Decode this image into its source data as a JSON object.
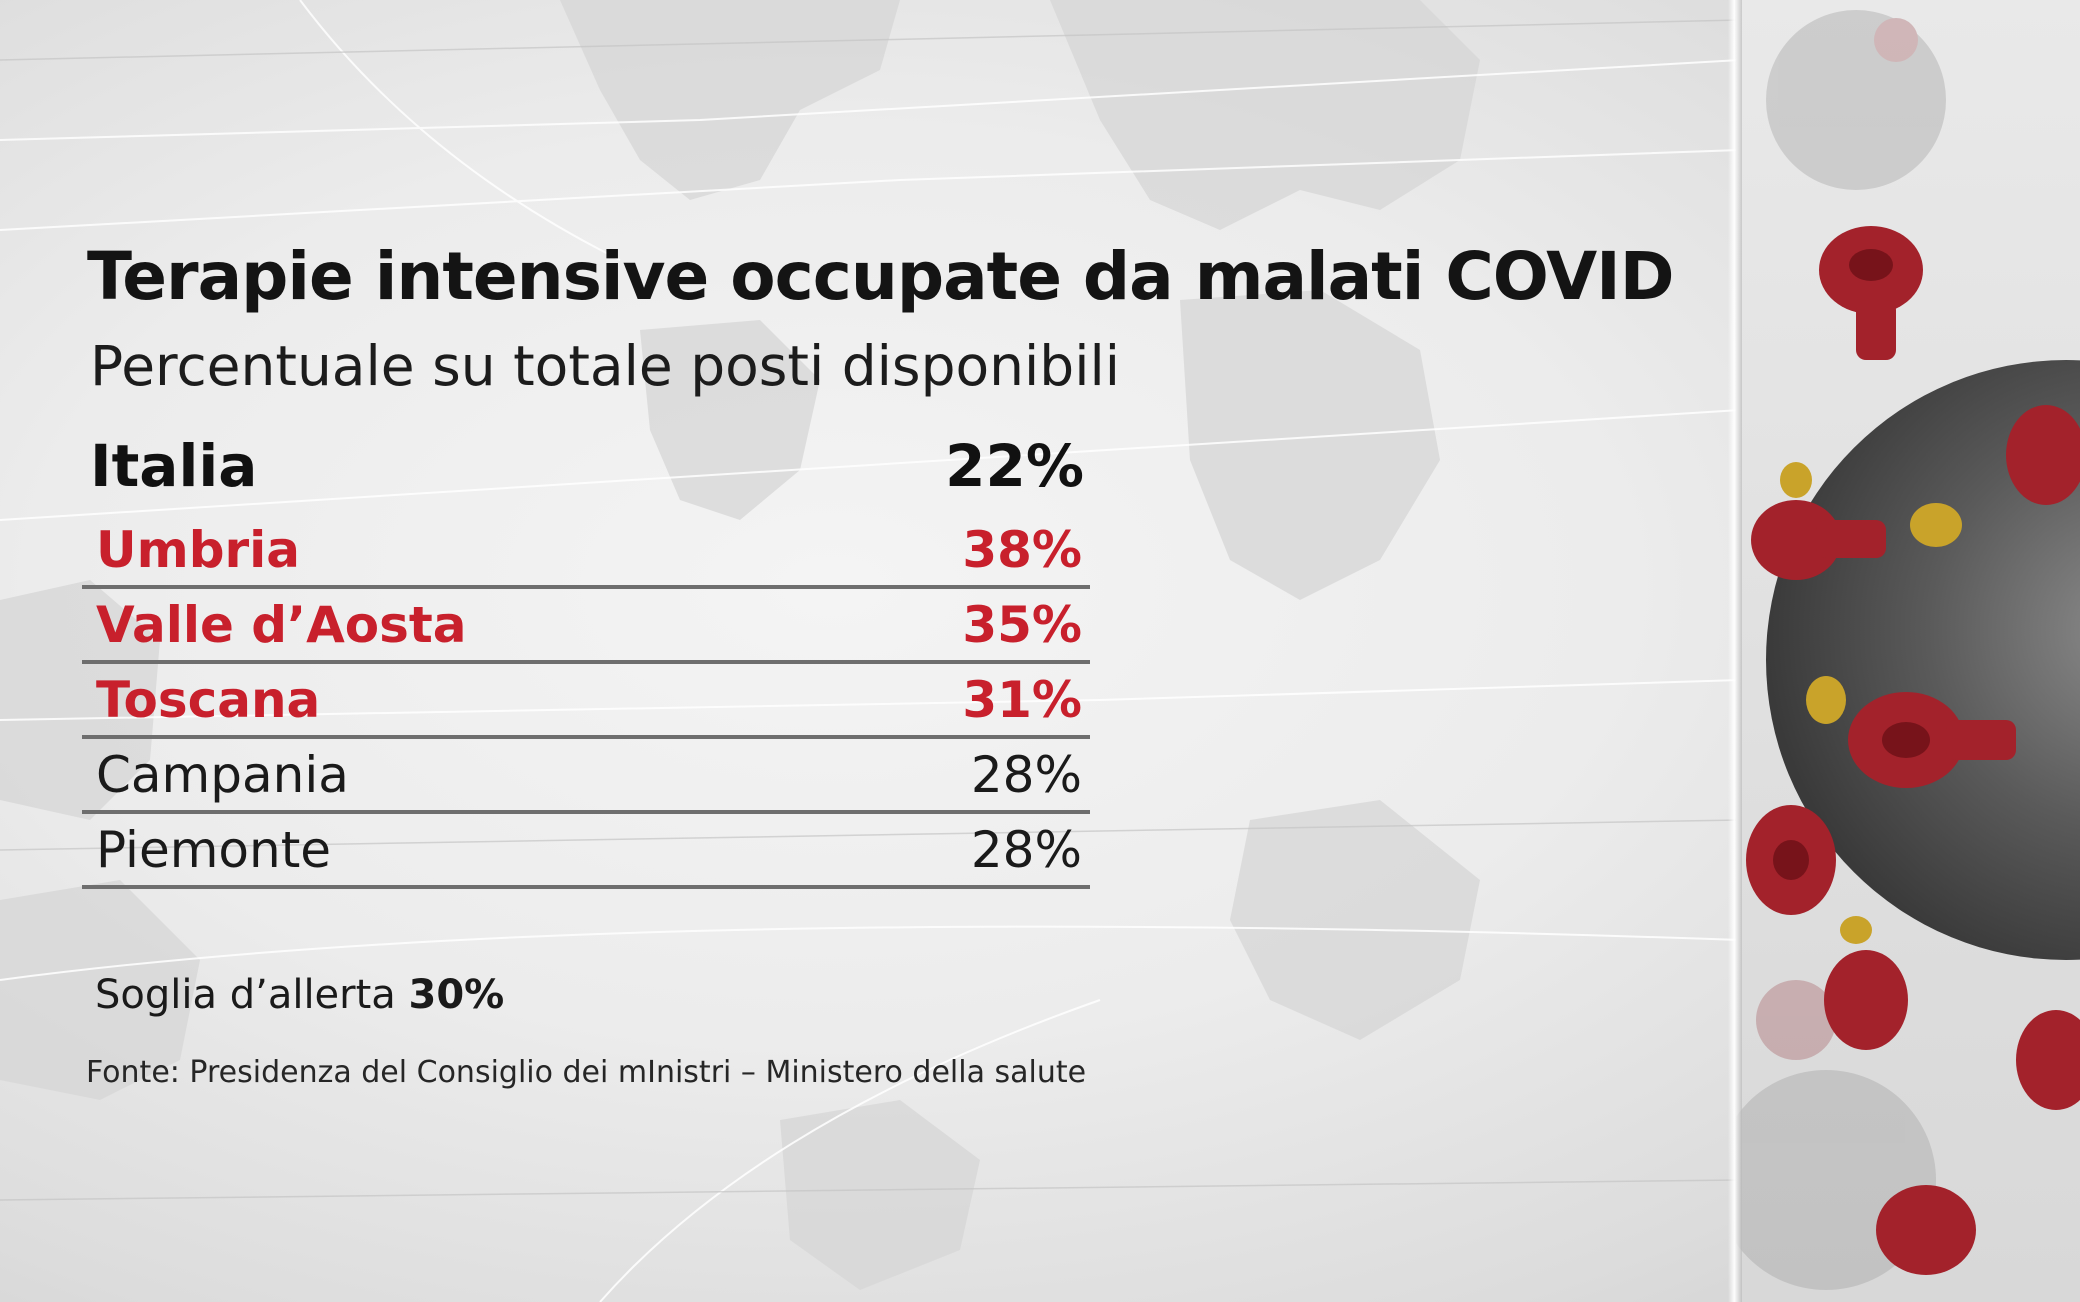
{
  "chart_data": {
    "type": "table",
    "title": "Terapie intensive occupate da malati COVID",
    "subtitle": "Percentuale su totale posti disponibili",
    "national": {
      "name": "Italia",
      "value": 22,
      "label": "22%"
    },
    "rows": [
      {
        "name": "Umbria",
        "value": 38,
        "label": "38%",
        "highlight": true
      },
      {
        "name": "Valle d’Aosta",
        "value": 35,
        "label": "35%",
        "highlight": true
      },
      {
        "name": "Toscana",
        "value": 31,
        "label": "31%",
        "highlight": true
      },
      {
        "name": "Campania",
        "value": 28,
        "label": "28%",
        "highlight": false
      },
      {
        "name": "Piemonte",
        "value": 28,
        "label": "28%",
        "highlight": false
      }
    ],
    "threshold": {
      "text": "Soglia d’allerta",
      "value": 30,
      "label": "30%"
    },
    "source": "Fonte: Presidenza del Consiglio dei mInistri – Ministero della salute"
  },
  "colors": {
    "alert_red": "#c8202c",
    "text_dark": "#111111",
    "rule_gray": "#6e6e6e",
    "virus_red": "#a3222b",
    "virus_yellow": "#c9a32a"
  },
  "icons": {
    "background_map": "world-map-graphic",
    "side_image": "coronavirus-illustration"
  }
}
